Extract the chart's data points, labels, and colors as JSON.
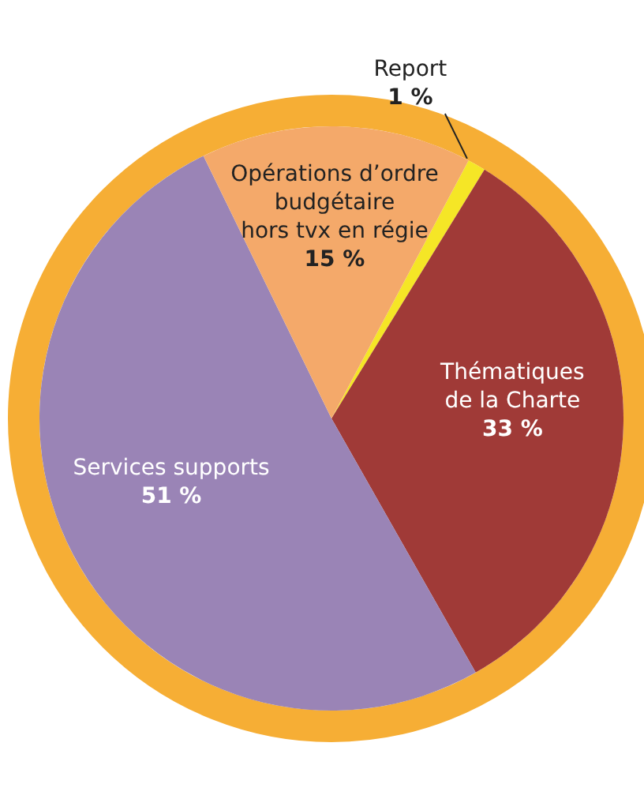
{
  "chart_data": {
    "type": "pie",
    "categories": [
      "Report",
      "Thématiques\nde la Charte",
      "Services supports",
      "Opérations d’ordre\nbudgétaire\nhors tvx en régie"
    ],
    "values": [
      1,
      33,
      51,
      15
    ],
    "value_labels": [
      "1 %",
      "33 %",
      "51 %",
      "15 %"
    ],
    "colors": [
      "#f5e626",
      "#a03a37",
      "#9a84b6",
      "#f4a96a"
    ],
    "legend": false
  }
}
